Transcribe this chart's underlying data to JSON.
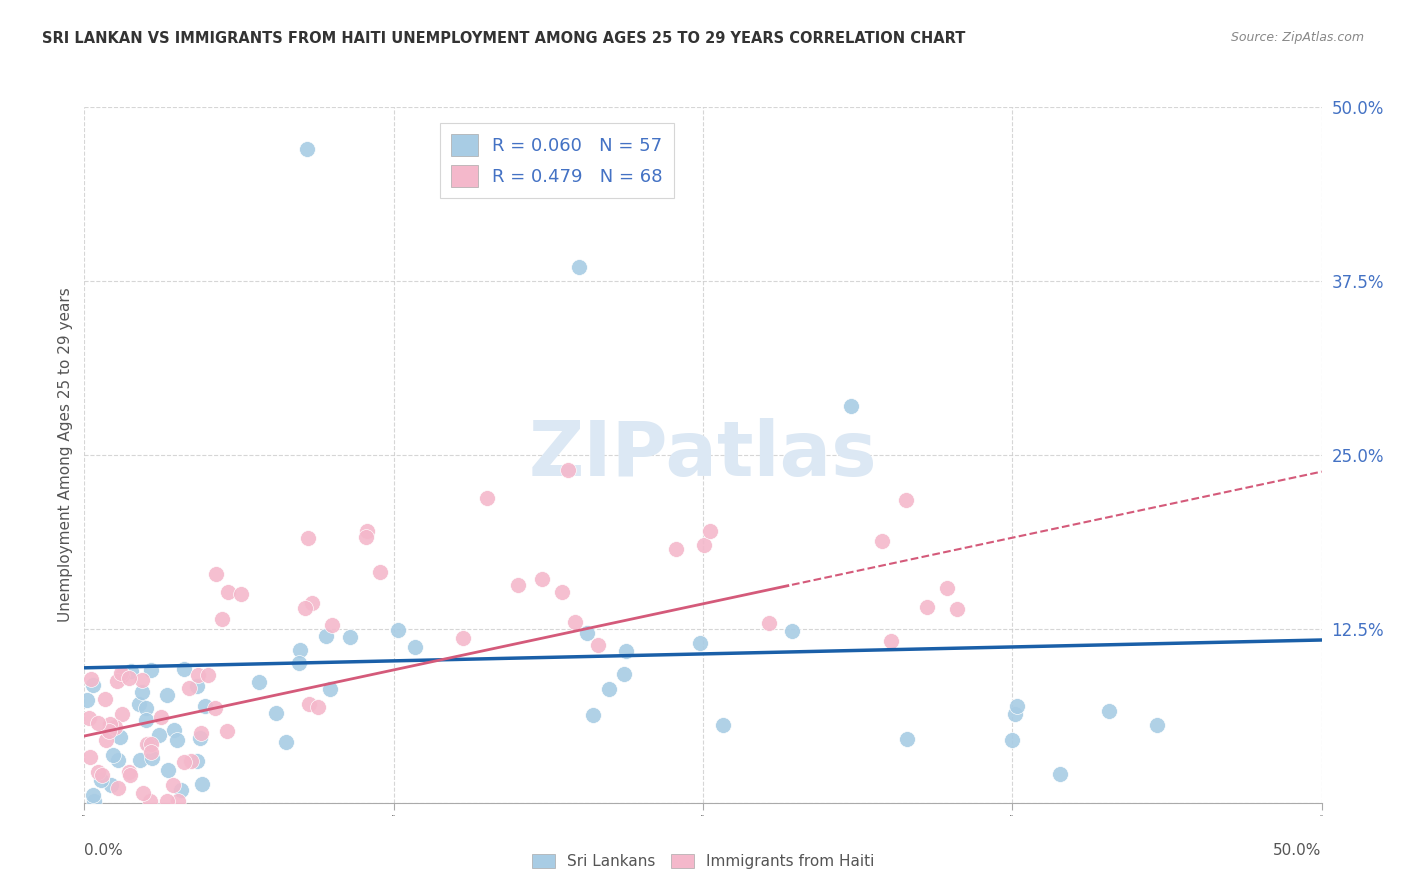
{
  "title": "SRI LANKAN VS IMMIGRANTS FROM HAITI UNEMPLOYMENT AMONG AGES 25 TO 29 YEARS CORRELATION CHART",
  "source": "Source: ZipAtlas.com",
  "ylabel": "Unemployment Among Ages 25 to 29 years",
  "legend_label1": "Sri Lankans",
  "legend_label2": "Immigrants from Haiti",
  "R1": 0.06,
  "N1": 57,
  "R2": 0.479,
  "N2": 68,
  "color_blue": "#a8cce4",
  "color_pink": "#f4b8cb",
  "line_blue": "#1a5fa8",
  "line_pink": "#d45a7a",
  "background_color": "#ffffff",
  "watermark_color": "#dce8f4",
  "xlim": [
    0.0,
    0.5
  ],
  "ylim": [
    0.0,
    0.5
  ],
  "yticks": [
    0.0,
    0.125,
    0.25,
    0.375,
    0.5
  ],
  "ytick_labels": [
    "",
    "12.5%",
    "25.0%",
    "37.5%",
    "50.0%"
  ],
  "tick_color": "#4472c4",
  "title_fontsize": 10.5,
  "source_fontsize": 9
}
